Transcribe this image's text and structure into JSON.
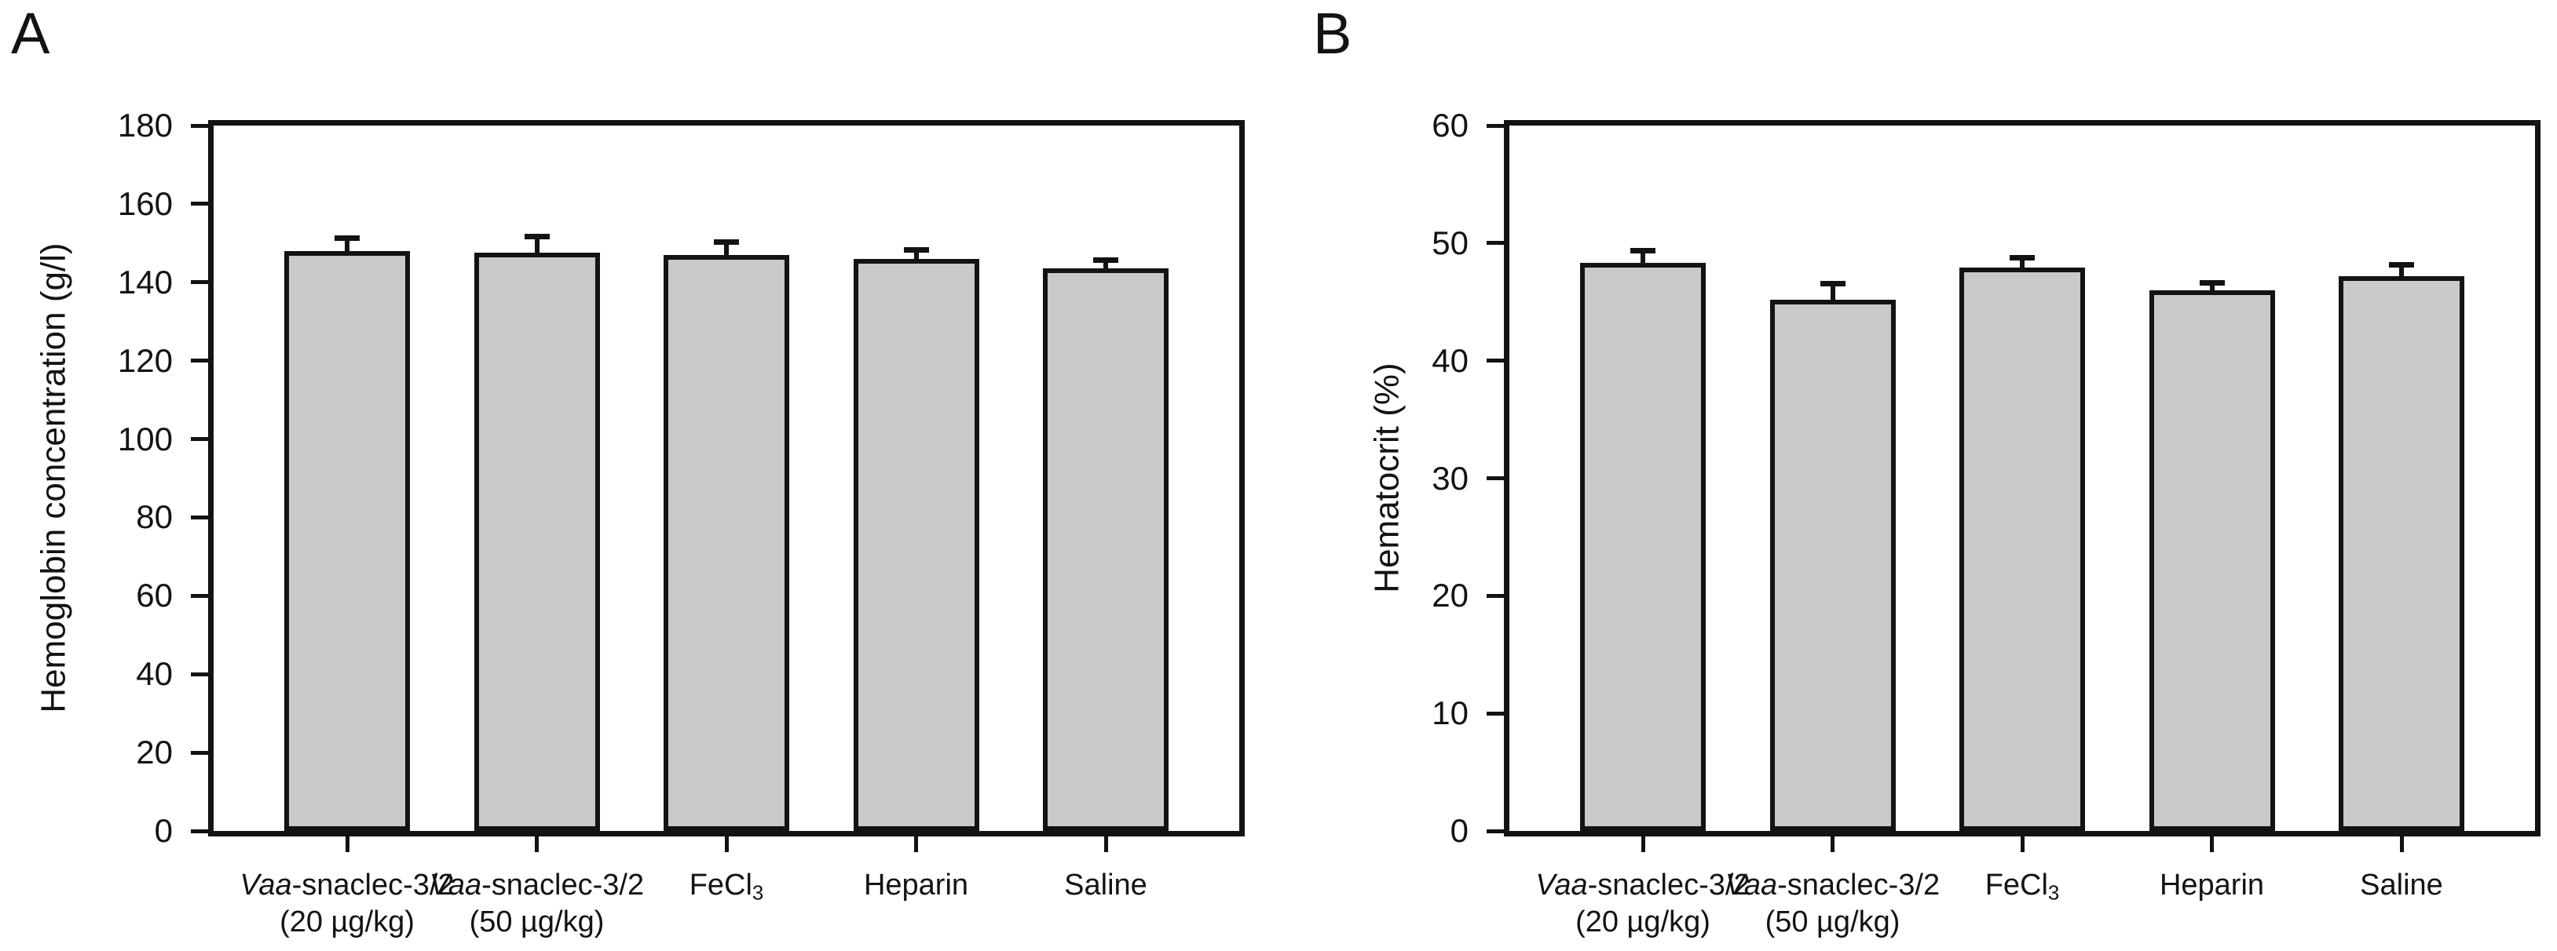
{
  "figure": {
    "background": "#ffffff",
    "bar_fill": "#c9c9c9",
    "line_color": "#131313"
  },
  "chart_data": [
    {
      "type": "bar",
      "panel": "A",
      "title": "",
      "xlabel": "",
      "ylabel": "Hemoglobin concentration (g/l)",
      "ylim": [
        0,
        180
      ],
      "yticks": [
        0,
        20,
        40,
        60,
        80,
        100,
        120,
        140,
        160,
        180
      ],
      "grid": false,
      "legend_position": "none",
      "categories": [
        {
          "italic": "Vaa",
          "text": "-snaclec-3/2",
          "sub": "",
          "line2": "(20 µg/kg)"
        },
        {
          "italic": "Vaa",
          "text": "-snaclec-3/2",
          "sub": "",
          "line2": "(50 µg/kg)"
        },
        {
          "italic": "",
          "text": "FeCl",
          "sub": "3",
          "line2": ""
        },
        {
          "italic": "",
          "text": "Heparin",
          "sub": "",
          "line2": ""
        },
        {
          "italic": "",
          "text": "Saline",
          "sub": "",
          "line2": ""
        }
      ],
      "values": [
        148,
        147.5,
        147,
        146,
        143.5
      ],
      "errors": [
        2.5,
        3.5,
        2.5,
        1.5,
        1.5
      ]
    },
    {
      "type": "bar",
      "panel": "B",
      "title": "",
      "xlabel": "",
      "ylabel": "Hematocrit (%)",
      "ylim": [
        0,
        60
      ],
      "yticks": [
        0,
        10,
        20,
        30,
        40,
        50,
        60
      ],
      "grid": false,
      "legend_position": "none",
      "categories": [
        {
          "italic": "Vaa",
          "text": "-snaclec-3/2",
          "sub": "",
          "line2": "(20 µg/kg)"
        },
        {
          "italic": "Vaa",
          "text": "-snaclec-3/2",
          "sub": "",
          "line2": "(50 µg/kg)"
        },
        {
          "italic": "",
          "text": "FeCl",
          "sub": "3",
          "line2": ""
        },
        {
          "italic": "",
          "text": "Heparin",
          "sub": "",
          "line2": ""
        },
        {
          "italic": "",
          "text": "Saline",
          "sub": "",
          "line2": ""
        }
      ],
      "values": [
        48.3,
        45.2,
        47.9,
        46,
        47.2
      ],
      "errors": [
        0.8,
        1.1,
        0.6,
        0.4,
        0.7
      ]
    }
  ]
}
